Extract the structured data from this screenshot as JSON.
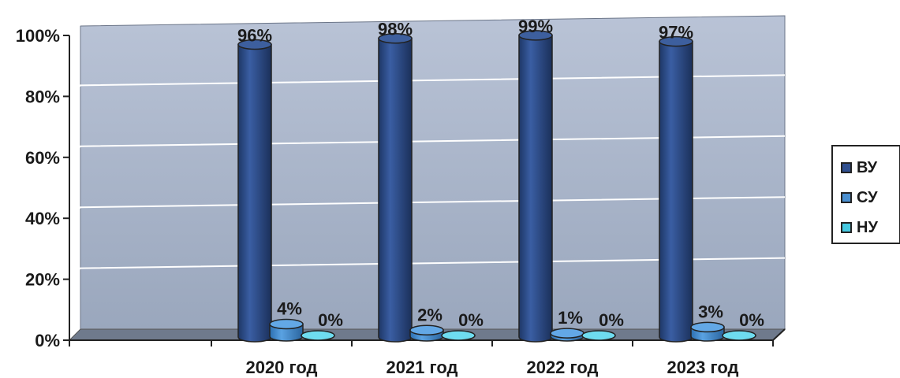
{
  "chart_data": {
    "type": "bar",
    "categories": [
      "2020 год",
      "2021 год",
      "2022 год",
      "2023 год"
    ],
    "series": [
      {
        "name": "ВУ",
        "values": [
          96,
          98,
          99,
          97
        ],
        "labels": [
          "96%",
          "98%",
          "99%",
          "97%"
        ],
        "color": "#2f4f8f"
      },
      {
        "name": "СУ",
        "values": [
          4,
          2,
          1,
          3
        ],
        "labels": [
          "4%",
          "2%",
          "1%",
          "3%"
        ],
        "color": "#4a8fd0"
      },
      {
        "name": "НУ",
        "values": [
          0,
          0,
          0,
          0
        ],
        "labels": [
          "0%",
          "0%",
          "0%",
          "0%"
        ],
        "color": "#45c8e0"
      }
    ],
    "yticks": [
      "0%",
      "20%",
      "40%",
      "60%",
      "80%",
      "100%"
    ],
    "ylim": [
      0,
      100
    ],
    "grid": true,
    "legend_position": "right"
  }
}
